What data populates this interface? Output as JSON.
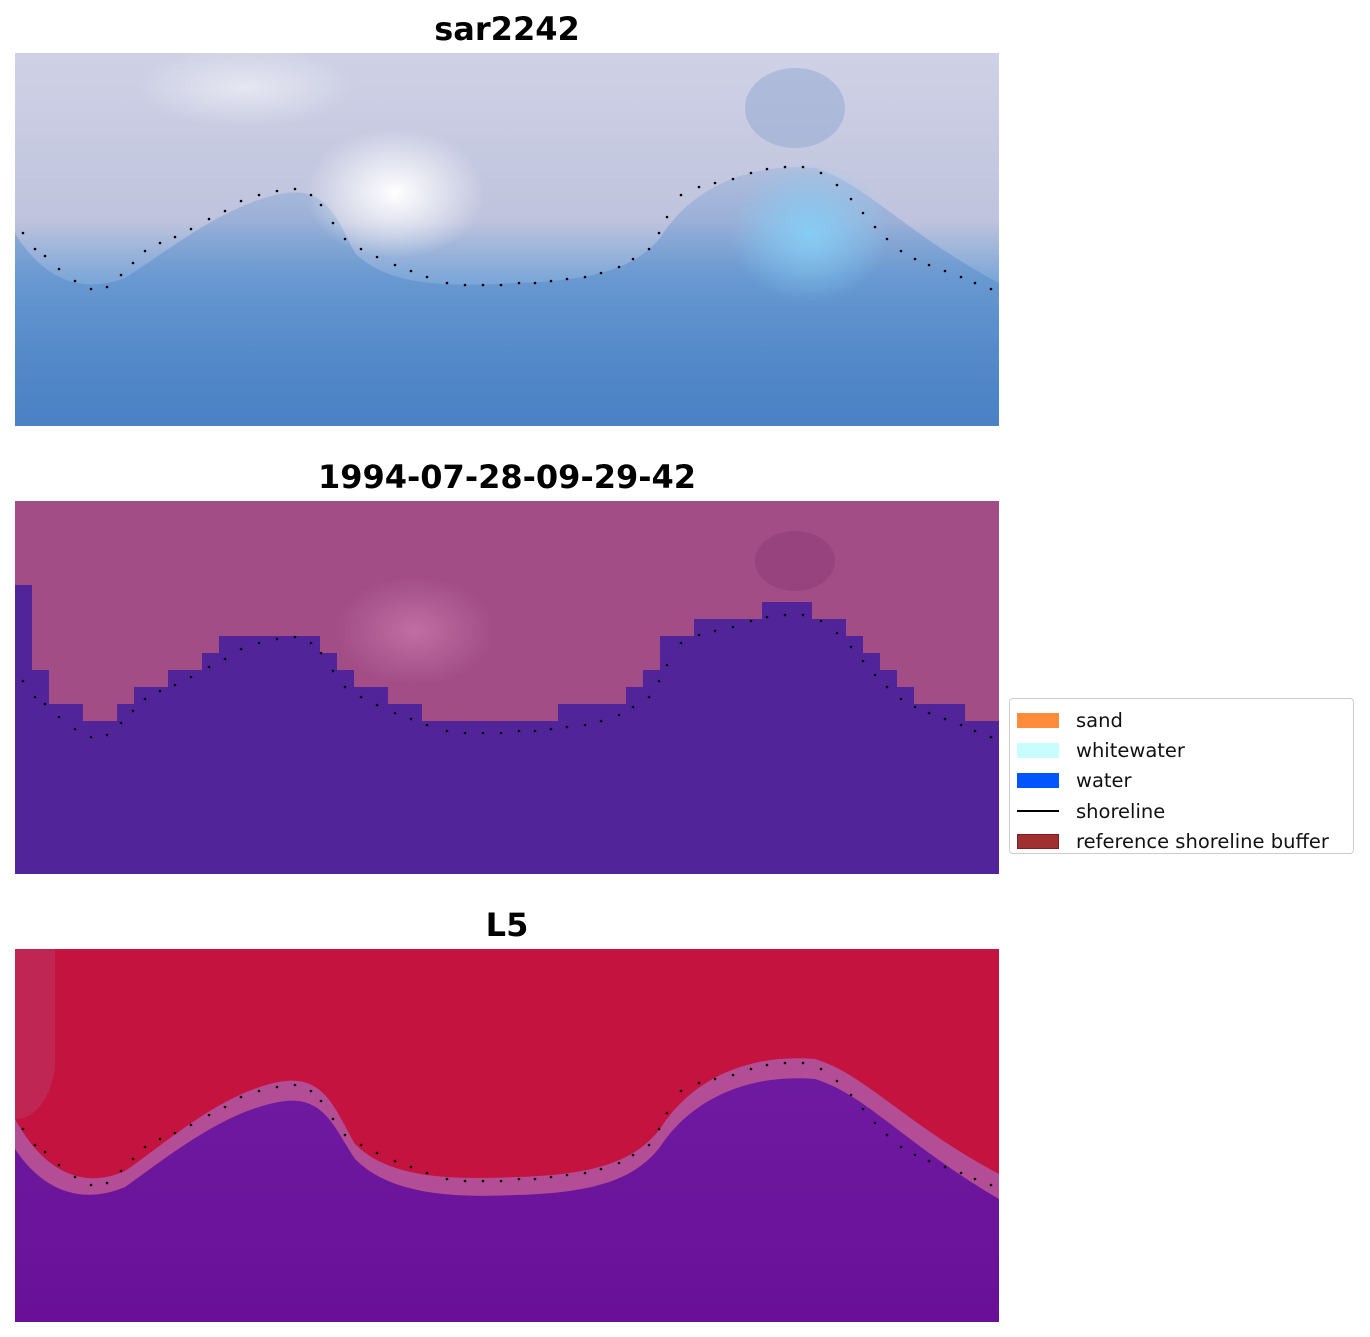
{
  "figure": {
    "panels": [
      {
        "title": "sar2242",
        "image": "rgb-composite"
      },
      {
        "title": "1994-07-28-09-29-42",
        "image": "classified-overlay"
      },
      {
        "title": "L5",
        "image": "probability-map"
      }
    ]
  },
  "legend": {
    "items": [
      {
        "label": "sand",
        "kind": "patch",
        "color": "#ff8c3a"
      },
      {
        "label": "whitewater",
        "kind": "patch",
        "color": "#c8fdfd"
      },
      {
        "label": "water",
        "kind": "patch",
        "color": "#0055ff"
      },
      {
        "label": "shoreline",
        "kind": "line",
        "color": "#000000"
      },
      {
        "label": "reference shoreline buffer",
        "kind": "patch",
        "color": "#a03030"
      }
    ]
  },
  "colors": {
    "rgb_sky": "#c8cbe0",
    "rgb_white": "#f4f2f6",
    "rgb_water": "#4f89c6",
    "rgb_cyan": "#7cc8f2",
    "class_land": "#a24d86",
    "class_land_light": "#bd6aa1",
    "class_water": "#52249a",
    "prob_land": "#c5123f",
    "prob_band": "#b04a93",
    "prob_water": "#6b139d",
    "shoreline_dots": "#000000"
  }
}
